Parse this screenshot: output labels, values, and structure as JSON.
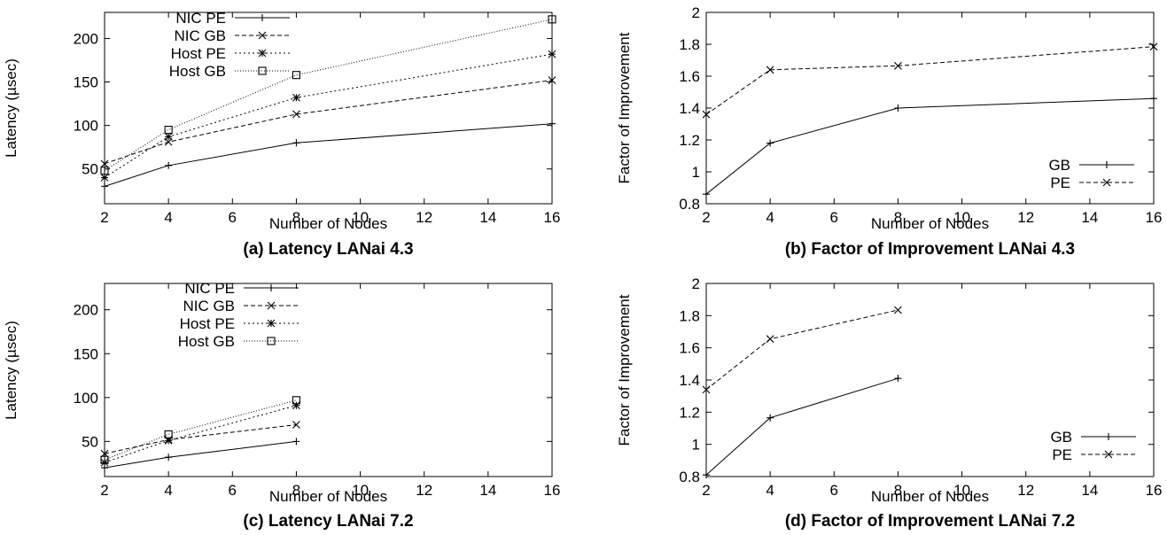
{
  "chart_data": [
    {
      "type": "line",
      "title": "(a) Latency LANai 4.3",
      "xlabel": "Number of Nodes",
      "ylabel": "Latency (µsec)",
      "xlim": [
        2,
        16
      ],
      "ylim": [
        10,
        230
      ],
      "xticks": [
        2,
        4,
        6,
        8,
        10,
        12,
        14,
        16
      ],
      "yticks": [
        50,
        100,
        150,
        200
      ],
      "legend_position": "top-left",
      "series": [
        {
          "name": "NIC PE",
          "marker": "plus",
          "dash": "",
          "x": [
            2,
            4,
            8,
            16
          ],
          "values": [
            30,
            54,
            80,
            102
          ]
        },
        {
          "name": "NIC GB",
          "marker": "x",
          "dash": "5,3",
          "x": [
            2,
            4,
            8,
            16
          ],
          "values": [
            56,
            81,
            113,
            152
          ]
        },
        {
          "name": "Host PE",
          "marker": "star",
          "dash": "2,3",
          "x": [
            2,
            4,
            8,
            16
          ],
          "values": [
            40,
            87,
            132,
            182
          ]
        },
        {
          "name": "Host GB",
          "marker": "square",
          "dash": "1,2",
          "x": [
            2,
            4,
            8,
            16
          ],
          "values": [
            48,
            95,
            158,
            222
          ]
        }
      ]
    },
    {
      "type": "line",
      "title": "(b) Factor of Improvement LANai 4.3",
      "xlabel": "Number of Nodes",
      "ylabel": "Factor of Improvement",
      "xlim": [
        2,
        16
      ],
      "ylim": [
        0.8,
        2
      ],
      "xticks": [
        2,
        4,
        6,
        8,
        10,
        12,
        14,
        16
      ],
      "yticks": [
        0.8,
        1,
        1.2,
        1.4,
        1.6,
        1.8,
        2
      ],
      "legend_position": "bottom-right",
      "series": [
        {
          "name": "GB",
          "marker": "plus",
          "dash": "",
          "x": [
            2,
            4,
            8,
            16
          ],
          "values": [
            0.86,
            1.18,
            1.4,
            1.46
          ]
        },
        {
          "name": "PE",
          "marker": "x",
          "dash": "5,3",
          "x": [
            2,
            4,
            8,
            16
          ],
          "values": [
            1.36,
            1.64,
            1.665,
            1.785
          ]
        }
      ]
    },
    {
      "type": "line",
      "title": "(c) Latency LANai 7.2",
      "xlabel": "Number of Nodes",
      "ylabel": "Latency (µsec)",
      "xlim": [
        2,
        16
      ],
      "ylim": [
        10,
        230
      ],
      "xticks": [
        2,
        4,
        6,
        8,
        10,
        12,
        14,
        16
      ],
      "yticks": [
        50,
        100,
        150,
        200
      ],
      "legend_position": "top-left",
      "series": [
        {
          "name": "NIC PE",
          "marker": "plus",
          "dash": "",
          "x": [
            2,
            4,
            8
          ],
          "values": [
            20,
            32,
            50
          ]
        },
        {
          "name": "NIC GB",
          "marker": "x",
          "dash": "5,3",
          "x": [
            2,
            4,
            8
          ],
          "values": [
            36,
            52,
            69
          ]
        },
        {
          "name": "Host PE",
          "marker": "star",
          "dash": "2,3",
          "x": [
            2,
            4,
            8
          ],
          "values": [
            26,
            51,
            91
          ]
        },
        {
          "name": "Host GB",
          "marker": "square",
          "dash": "1,2",
          "x": [
            2,
            4,
            8
          ],
          "values": [
            29,
            58,
            97
          ]
        }
      ]
    },
    {
      "type": "line",
      "title": "(d) Factor of Improvement LANai 7.2",
      "xlabel": "Number of Nodes",
      "ylabel": "Factor of Improvement",
      "xlim": [
        2,
        16
      ],
      "ylim": [
        0.8,
        2
      ],
      "xticks": [
        2,
        4,
        6,
        8,
        10,
        12,
        14,
        16
      ],
      "yticks": [
        0.8,
        1,
        1.2,
        1.4,
        1.6,
        1.8,
        2
      ],
      "legend_position": "bottom-right",
      "series": [
        {
          "name": "GB",
          "marker": "plus",
          "dash": "",
          "x": [
            2,
            4,
            8
          ],
          "values": [
            0.81,
            1.165,
            1.41
          ]
        },
        {
          "name": "PE",
          "marker": "x",
          "dash": "5,3",
          "x": [
            2,
            4,
            8
          ],
          "values": [
            1.34,
            1.655,
            1.835
          ]
        }
      ]
    }
  ]
}
